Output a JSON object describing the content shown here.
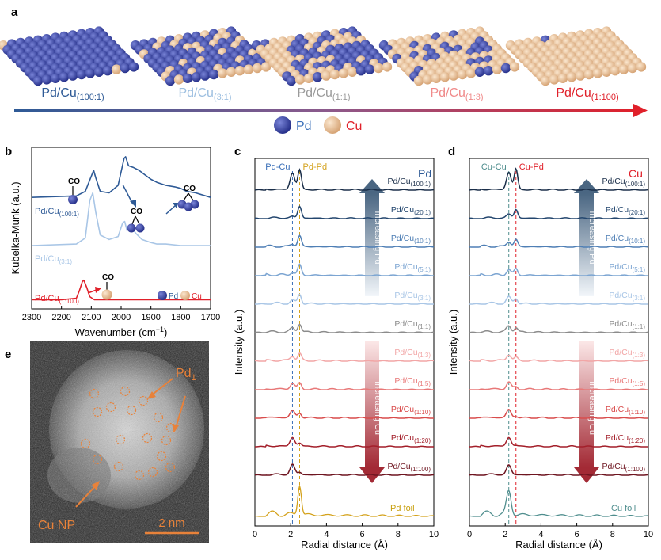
{
  "panels": {
    "a": {
      "letter": "a",
      "compositions": [
        "Pd/Cu(100:1)",
        "Pd/Cu(3:1)",
        "Pd/Cu(1:1)",
        "Pd/Cu(1:3)",
        "Pd/Cu(1:100)"
      ],
      "label_main": "Pd/Cu",
      "ratios": [
        "(100:1)",
        "(3:1)",
        "(1:1)",
        "(1:3)",
        "(1:100)"
      ],
      "cu_fraction": [
        0.01,
        0.25,
        0.5,
        0.75,
        0.99
      ],
      "label_colors": [
        "#2E5A96",
        "#9DBFE0",
        "#9A9A9A",
        "#F08A8A",
        "#E0202A"
      ],
      "legend": [
        {
          "label": "Pd",
          "color": "#3A45A8"
        },
        {
          "label": "Cu",
          "color": "#E8C49A"
        }
      ],
      "legend_label_colors": [
        "#3A6FB8",
        "#E0202A"
      ]
    },
    "b": {
      "letter": "b",
      "ylabel": "Kubelka-Munk (a.u.)",
      "xlabel": "Wavenumber (cm",
      "xlabel_sup": "−1",
      "xlabel_tail": ")",
      "xticks": [
        "2300",
        "2200",
        "2100",
        "2000",
        "1900",
        "1800",
        "1700"
      ],
      "co_label": "CO",
      "legend": [
        "Pd",
        "Cu"
      ],
      "series_main": "Pd/Cu",
      "series_sub": [
        "(100:1)",
        "(3:1)",
        "(1:100)"
      ]
    },
    "c": {
      "letter": "c",
      "element": "Pd",
      "ylabel": "Intensity (a.u.)",
      "xlabel": "Radial distance (Å)",
      "xticks": [
        "0",
        "2",
        "4",
        "6",
        "8",
        "10"
      ],
      "ref_lines": [
        "Pd-Cu",
        "Pd-Pd"
      ],
      "arrow_up": "Increasing Pd",
      "arrow_down": "Increasing Cu",
      "foil": "Pd foil"
    },
    "d": {
      "letter": "d",
      "element": "Cu",
      "ylabel": "Intensity (a.u.)",
      "xlabel": "Radial distance (Å)",
      "xticks": [
        "0",
        "2",
        "4",
        "6",
        "8",
        "10"
      ],
      "ref_lines": [
        "Cu-Cu",
        "Cu-Pd"
      ],
      "arrow_up": "Increasing Pd",
      "arrow_down": "Increasing Cu",
      "foil": "Cu foil"
    },
    "e": {
      "letter": "e",
      "label_pd1_main": "Pd",
      "label_pd1_sub": "1",
      "label_cunp": "Cu NP",
      "scale": "2 nm"
    }
  },
  "ratio_series": {
    "main": "Pd/Cu",
    "subs": [
      "(100:1)",
      "(20:1)",
      "(10:1)",
      "(5:1)",
      "(3:1)",
      "(1:1)",
      "(1:3)",
      "(1:5)",
      "(1:10)",
      "(1:20)",
      "(1:100)"
    ],
    "colors": [
      "#1B2F4A",
      "#23466E",
      "#4F7FB5",
      "#7CA5D2",
      "#A9C6E6",
      "#8C8C8C",
      "#F2A6A6",
      "#E87878",
      "#D94C4C",
      "#A31F2A",
      "#6E1520"
    ]
  },
  "chart_data": [
    {
      "type": "line",
      "panel": "b",
      "xlabel": "Wavenumber (cm−1)",
      "ylabel": "Kubelka-Munk (a.u.)",
      "xlim": [
        2300,
        1700
      ],
      "grid": false,
      "series": [
        {
          "name": "Pd/Cu(100:1)",
          "color": "#2E5A96",
          "baseline": 0.72,
          "x": [
            2300,
            2150,
            2120,
            2100,
            2092,
            2085,
            2070,
            2040,
            2010,
            1990,
            1985,
            1975,
            1960,
            1940,
            1920,
            1900,
            1880,
            1850,
            1820,
            1800,
            1780,
            1750,
            1700
          ],
          "y": [
            0.72,
            0.73,
            0.76,
            0.86,
            0.9,
            0.85,
            0.76,
            0.75,
            0.8,
            0.98,
            0.99,
            0.93,
            0.92,
            0.9,
            0.87,
            0.84,
            0.82,
            0.8,
            0.79,
            0.78,
            0.76,
            0.75,
            0.72
          ]
        },
        {
          "name": "Pd/Cu(3:1)",
          "color": "#A9C6E6",
          "baseline": 0.4,
          "x": [
            2300,
            2150,
            2120,
            2105,
            2095,
            2085,
            2070,
            2040,
            2010,
            1995,
            1988,
            1980,
            1965,
            1950,
            1930,
            1900,
            1880,
            1850,
            1800,
            1750,
            1700
          ],
          "y": [
            0.4,
            0.41,
            0.45,
            0.7,
            0.75,
            0.62,
            0.47,
            0.44,
            0.46,
            0.55,
            0.56,
            0.5,
            0.52,
            0.48,
            0.44,
            0.42,
            0.41,
            0.41,
            0.4,
            0.4,
            0.4
          ]
        },
        {
          "name": "Pd/Cu(1:100)",
          "color": "#E0202A",
          "baseline": 0.04,
          "x": [
            2300,
            2200,
            2150,
            2140,
            2130,
            2125,
            2115,
            2105,
            2090,
            2050,
            2000,
            1900,
            1800,
            1700
          ],
          "y": [
            0.04,
            0.04,
            0.05,
            0.1,
            0.16,
            0.17,
            0.12,
            0.06,
            0.04,
            0.04,
            0.04,
            0.04,
            0.04,
            0.04
          ]
        }
      ]
    },
    {
      "type": "line",
      "panel": "c",
      "title": "Pd",
      "xlabel": "Radial distance (Å)",
      "ylabel": "Intensity (a.u.)",
      "xlim": [
        0,
        10
      ],
      "ref_lines": [
        {
          "name": "Pd-Cu",
          "x": 2.1,
          "color": "#3A6FB8"
        },
        {
          "name": "Pd-Pd",
          "x": 2.5,
          "color": "#D4A21C"
        }
      ],
      "series_labels": [
        "Pd/Cu(100:1)",
        "Pd/Cu(20:1)",
        "Pd/Cu(10:1)",
        "Pd/Cu(5:1)",
        "Pd/Cu(3:1)",
        "Pd/Cu(1:1)",
        "Pd/Cu(1:3)",
        "Pd/Cu(1:5)",
        "Pd/Cu(1:10)",
        "Pd/Cu(1:20)",
        "Pd/Cu(1:100)",
        "Pd foil"
      ],
      "peak_a": [
        2.1,
        0.2,
        0.3,
        0.35,
        0.4,
        0.5,
        0.6,
        0.75,
        0.9,
        1.1,
        1.3,
        0
      ],
      "peak_b": [
        2.5,
        1.5,
        1.4,
        1.3,
        1.2,
        1.1,
        0.9,
        0.75,
        0.6,
        0.4,
        0.3,
        3.8
      ]
    },
    {
      "type": "line",
      "panel": "d",
      "title": "Cu",
      "xlabel": "Radial distance (Å)",
      "ylabel": "Intensity (a.u.)",
      "xlim": [
        0,
        10
      ],
      "ref_lines": [
        {
          "name": "Cu-Cu",
          "x": 2.2,
          "color": "#4F8E8E"
        },
        {
          "name": "Cu-Pd",
          "x": 2.6,
          "color": "#E0202A"
        }
      ],
      "series_labels": [
        "Pd/Cu(100:1)",
        "Pd/Cu(20:1)",
        "Pd/Cu(10:1)",
        "Pd/Cu(5:1)",
        "Pd/Cu(3:1)",
        "Pd/Cu(1:1)",
        "Pd/Cu(1:3)",
        "Pd/Cu(1:5)",
        "Pd/Cu(1:10)",
        "Pd/Cu(1:20)",
        "Pd/Cu(1:100)",
        "Cu foil"
      ],
      "peak_a": [
        2.2,
        0.5,
        0.6,
        0.7,
        0.8,
        0.8,
        0.8,
        0.9,
        1.0,
        1.1,
        1.2,
        3.0
      ],
      "peak_b": [
        2.6,
        1.1,
        0.9,
        0.8,
        0.7,
        0.6,
        0.4,
        0.3,
        0.2,
        0.1,
        0.0,
        0.0
      ]
    }
  ]
}
